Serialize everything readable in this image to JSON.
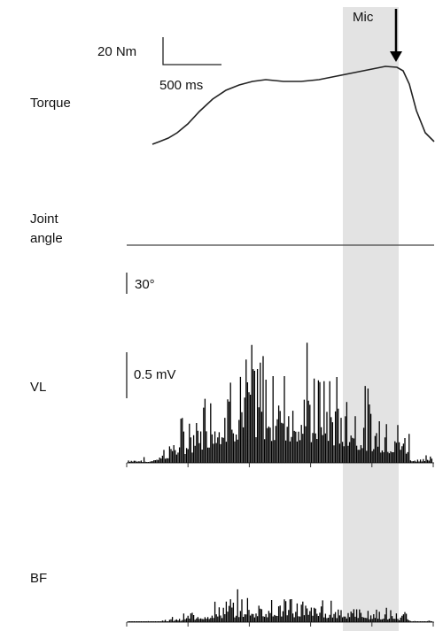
{
  "labels": {
    "torque": "Torque",
    "joint_angle": [
      "Joint",
      "angle"
    ],
    "vl": "VL",
    "bf": "BF"
  },
  "scale_bars": {
    "torque_amplitude": "20 Nm",
    "time": "500 ms",
    "angle": "30°",
    "emg": "0.5 mV"
  },
  "annotation": "Mic"
}
